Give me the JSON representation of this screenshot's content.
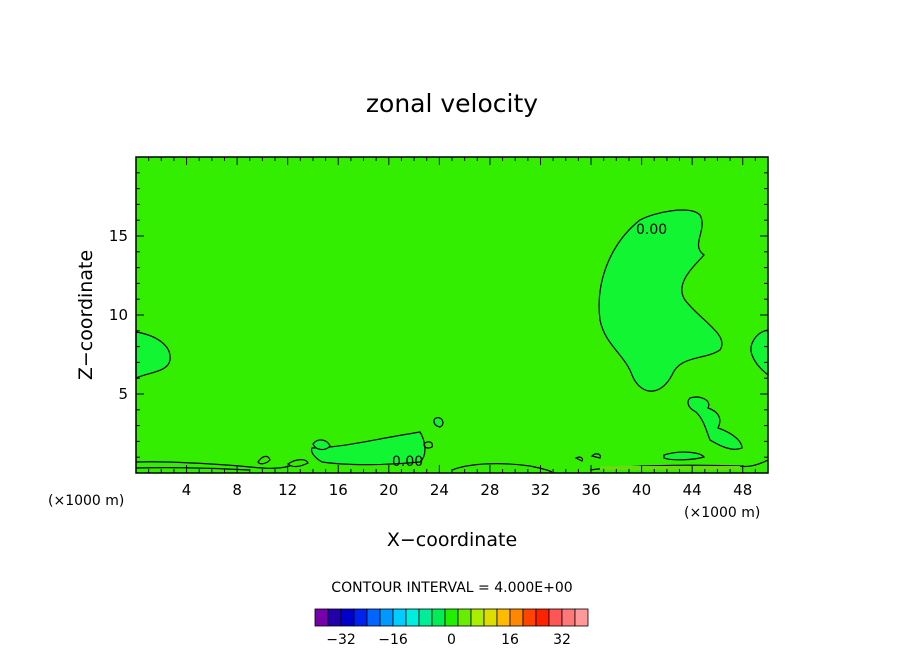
{
  "chart_data": {
    "type": "contour",
    "title": "zonal velocity",
    "xlabel": "X−coordinate",
    "ylabel": "Z−coordinate",
    "x_unit_left": "(×1000 m)",
    "x_unit_right": "(×1000 m)",
    "xlim": [
      0,
      50
    ],
    "ylim": [
      0,
      20
    ],
    "x_ticks": [
      4,
      8,
      12,
      16,
      20,
      24,
      28,
      32,
      36,
      40,
      44,
      48
    ],
    "y_ticks": [
      5,
      10,
      15
    ],
    "field_color": "#33ee00",
    "contour_levels_labeled": [
      "0.00",
      "0.00"
    ],
    "contour_interval_text": "CONTOUR INTERVAL = 4.000E+00",
    "colorbar": {
      "colors": [
        "#7700aa",
        "#2200aa",
        "#0000cc",
        "#0022ee",
        "#0066ff",
        "#0099ff",
        "#00ccff",
        "#00eedd",
        "#00ee99",
        "#00ee55",
        "#22ee00",
        "#66ee00",
        "#aaee00",
        "#dddd00",
        "#ffbb00",
        "#ff8800",
        "#ff4400",
        "#ff2200",
        "#ff5555",
        "#ff7777",
        "#ff9999"
      ],
      "tick_labels": [
        "−32",
        "−16",
        "0",
        "16",
        "32"
      ]
    }
  }
}
